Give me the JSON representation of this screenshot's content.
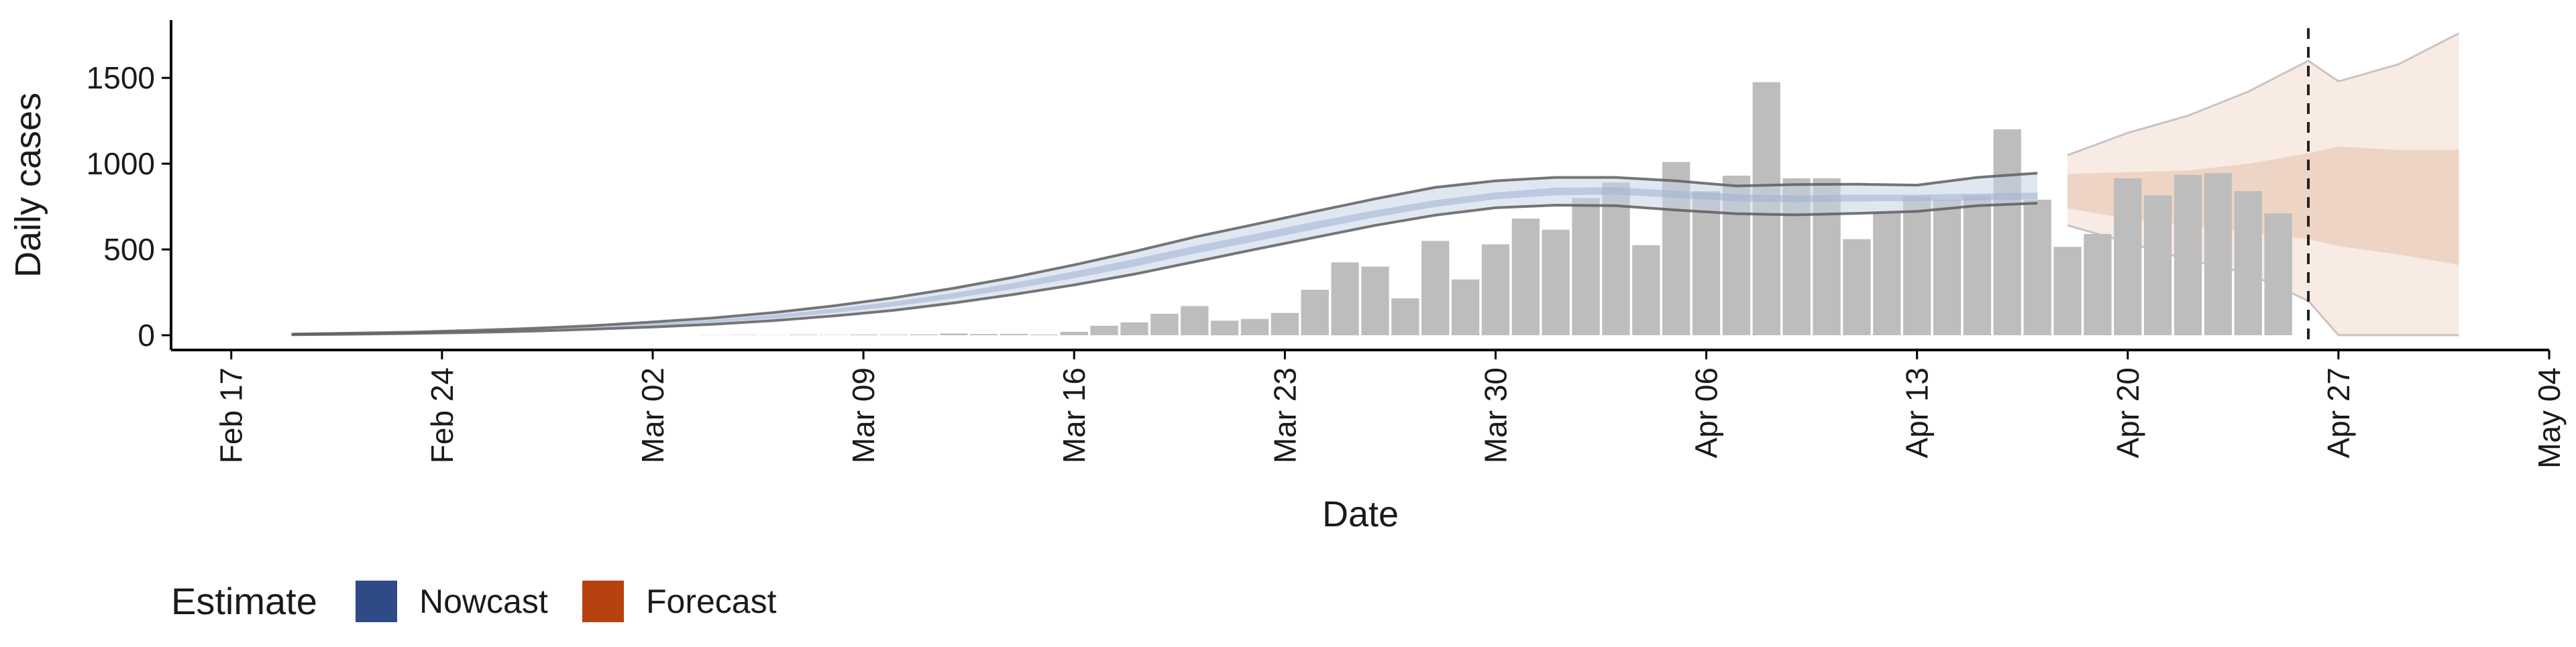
{
  "chart_data": {
    "type": "bar",
    "xlabel": "Date",
    "ylabel": "Daily cases",
    "ylim": [
      0,
      1850
    ],
    "y_ticks": [
      0,
      500,
      1000,
      1500
    ],
    "x_ticks": [
      "Feb 17",
      "Feb 24",
      "Mar 02",
      "Mar 09",
      "Mar 16",
      "Mar 23",
      "Mar 30",
      "Apr 06",
      "Apr 13",
      "Apr 20",
      "Apr 27",
      "May 04"
    ],
    "x_range": [
      "Feb 15",
      "May 04"
    ],
    "grid": false,
    "reference_line": {
      "date": "Apr 26",
      "style": "dashed"
    },
    "bar_color": "#bdbdbd",
    "cases": {
      "dates": [
        "Mar 04",
        "Mar 05",
        "Mar 06",
        "Mar 07",
        "Mar 08",
        "Mar 09",
        "Mar 10",
        "Mar 11",
        "Mar 12",
        "Mar 13",
        "Mar 14",
        "Mar 15",
        "Mar 16",
        "Mar 17",
        "Mar 18",
        "Mar 19",
        "Mar 20",
        "Mar 21",
        "Mar 22",
        "Mar 23",
        "Mar 24",
        "Mar 25",
        "Mar 26",
        "Mar 27",
        "Mar 28",
        "Mar 29",
        "Mar 30",
        "Mar 31",
        "Apr 01",
        "Apr 02",
        "Apr 03",
        "Apr 04",
        "Apr 05",
        "Apr 06",
        "Apr 07",
        "Apr 08",
        "Apr 09",
        "Apr 10",
        "Apr 11",
        "Apr 12",
        "Apr 13",
        "Apr 14",
        "Apr 15",
        "Apr 16",
        "Apr 17",
        "Apr 18",
        "Apr 19",
        "Apr 20",
        "Apr 21",
        "Apr 22",
        "Apr 23",
        "Apr 24",
        "Apr 25",
        "Apr 26"
      ],
      "values": [
        1,
        2,
        1,
        3,
        2,
        4,
        3,
        5,
        10,
        7,
        8,
        4,
        20,
        55,
        75,
        125,
        170,
        85,
        95,
        130,
        265,
        425,
        400,
        215,
        550,
        325,
        530,
        680,
        615,
        800,
        890,
        525,
        1010,
        840,
        930,
        1475,
        915,
        915,
        560,
        715,
        810,
        790,
        815,
        1200,
        790,
        515,
        590,
        915,
        815,
        935,
        945,
        840,
        710,
        0
      ]
    },
    "series": [
      {
        "name": "Nowcast",
        "color": "#2e4a87",
        "dates": [
          "Feb 19",
          "Feb 21",
          "Feb 23",
          "Feb 25",
          "Feb 27",
          "Feb 29",
          "Mar 02",
          "Mar 04",
          "Mar 06",
          "Mar 08",
          "Mar 10",
          "Mar 12",
          "Mar 14",
          "Mar 16",
          "Mar 18",
          "Mar 20",
          "Mar 22",
          "Mar 24",
          "Mar 26",
          "Mar 28",
          "Mar 30",
          "Apr 01",
          "Apr 03",
          "Apr 05",
          "Apr 07",
          "Apr 09",
          "Apr 11",
          "Apr 13",
          "Apr 15",
          "Apr 17"
        ],
        "median": [
          5,
          9,
          14,
          22,
          32,
          45,
          62,
          82,
          108,
          142,
          182,
          230,
          288,
          352,
          422,
          498,
          568,
          640,
          708,
          768,
          812,
          838,
          842,
          822,
          802,
          795,
          800,
          800,
          805,
          812
        ],
        "lower_90": [
          3,
          6,
          10,
          16,
          24,
          35,
          48,
          64,
          85,
          112,
          145,
          188,
          238,
          293,
          356,
          428,
          500,
          570,
          640,
          700,
          743,
          758,
          755,
          730,
          708,
          702,
          710,
          722,
          755,
          770
        ],
        "upper_90": [
          7,
          12,
          18,
          28,
          40,
          56,
          77,
          101,
          132,
          171,
          218,
          274,
          338,
          410,
          488,
          572,
          646,
          722,
          795,
          862,
          900,
          920,
          920,
          900,
          870,
          878,
          880,
          875,
          920,
          945
        ],
        "lower_50": [
          4,
          8,
          12,
          19,
          28,
          40,
          55,
          74,
          97,
          130,
          168,
          215,
          270,
          332,
          400,
          476,
          546,
          618,
          688,
          748,
          792,
          816,
          820,
          800,
          780,
          775,
          780,
          782,
          786,
          792
        ],
        "upper_50": [
          6,
          10,
          16,
          25,
          36,
          50,
          69,
          90,
          119,
          154,
          196,
          246,
          306,
          372,
          444,
          520,
          590,
          662,
          728,
          788,
          832,
          860,
          862,
          842,
          822,
          815,
          820,
          820,
          825,
          832
        ]
      },
      {
        "name": "Forecast",
        "color": "#b5420f",
        "dates": [
          "Apr 18",
          "Apr 20",
          "Apr 22",
          "Apr 24",
          "Apr 26",
          "Apr 27",
          "Apr 29",
          "May 01"
        ],
        "median": [
          900,
          880,
          890,
          900,
          920,
          930,
          950,
          950
        ],
        "lower_90": [
          640,
          540,
          440,
          360,
          200,
          0,
          0,
          0
        ],
        "upper_90": [
          1050,
          1180,
          1280,
          1420,
          1600,
          1480,
          1580,
          1760
        ],
        "lower_50": [
          740,
          680,
          640,
          600,
          560,
          520,
          470,
          410
        ],
        "upper_50": [
          940,
          950,
          960,
          1000,
          1060,
          1100,
          1080,
          1080
        ]
      }
    ],
    "legend": {
      "title": "Estimate",
      "position": "bottom-left",
      "items": [
        {
          "label": "Nowcast",
          "color": "#2e4a87"
        },
        {
          "label": "Forecast",
          "color": "#b5420f"
        }
      ]
    }
  }
}
